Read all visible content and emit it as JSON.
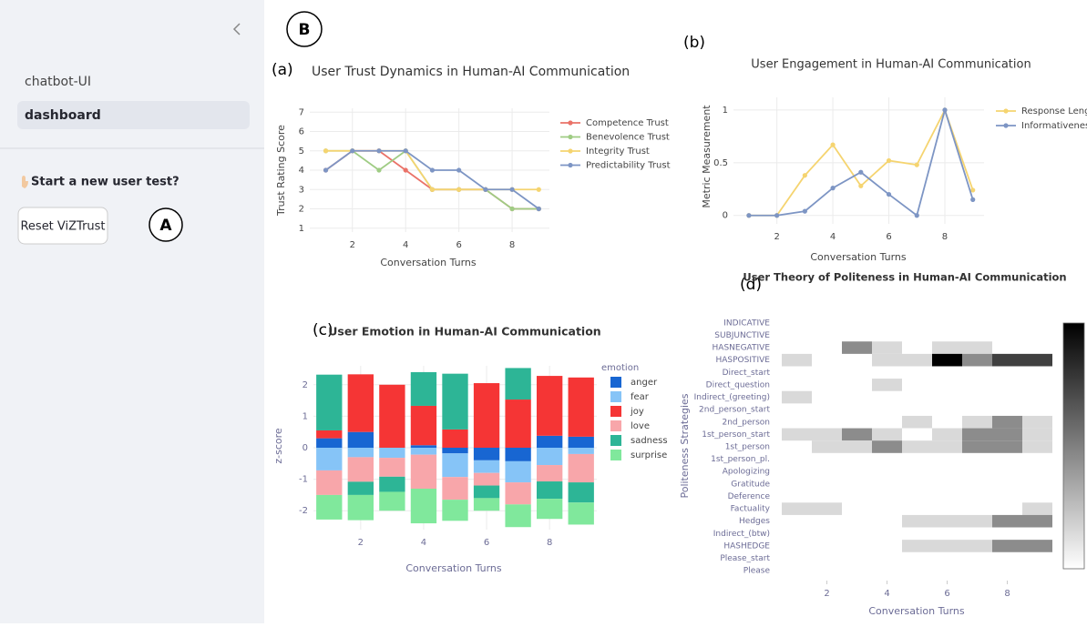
{
  "sidebar": {
    "nav": [
      "chatbot-UI",
      "dashboard"
    ],
    "prompt": "Start a new user test?",
    "button": "Reset ViZTrust"
  },
  "annotations": [
    "A",
    "B"
  ],
  "chart_data": [
    {
      "type": "line",
      "label": "(a)",
      "title": "User Trust Dynamics in Human-AI Communication",
      "x_label": "Conversation Turns",
      "y_label": "Trust Rating Score",
      "x": [
        1,
        2,
        3,
        4,
        5,
        6,
        7,
        8,
        9
      ],
      "xlim": [
        0.4,
        9.4
      ],
      "xticks": [
        2,
        4,
        6,
        8
      ],
      "ylim": [
        0.8,
        7.2
      ],
      "yticks": [
        1,
        2,
        3,
        4,
        5,
        6,
        7
      ],
      "grid": true,
      "series": [
        {
          "name": "Competence Trust",
          "color": "#ea7268",
          "values": [
            4,
            5,
            5,
            4,
            3,
            3,
            3,
            2,
            2
          ]
        },
        {
          "name": "Benevolence Trust",
          "color": "#9fcc84",
          "values": [
            5,
            5,
            4,
            5,
            3,
            3,
            3,
            2,
            2
          ]
        },
        {
          "name": "Integrity Trust",
          "color": "#f5d470",
          "values": [
            5,
            5,
            5,
            5,
            3,
            3,
            3,
            3,
            3
          ]
        },
        {
          "name": "Predictability Trust",
          "color": "#7d95c4",
          "values": [
            4,
            5,
            5,
            5,
            4,
            4,
            3,
            3,
            2
          ]
        }
      ]
    },
    {
      "type": "line",
      "label": "(b)",
      "title": "User Engagement in Human-AI Communication",
      "x_label": "Conversation Turns",
      "y_label": "Metric Measurement",
      "x": [
        1,
        2,
        3,
        4,
        5,
        6,
        7,
        8,
        9
      ],
      "xlim": [
        0.45,
        9.4
      ],
      "xticks": [
        2,
        4,
        6,
        8
      ],
      "ylim": [
        -0.08,
        1.12
      ],
      "yticks": [
        0,
        0.5,
        1
      ],
      "grid": true,
      "series": [
        {
          "name": "Response Length",
          "color": "#f5d470",
          "values": [
            0,
            0,
            0.38,
            0.67,
            0.28,
            0.52,
            0.48,
            1,
            0.24
          ]
        },
        {
          "name": "Informativeness",
          "color": "#7d95c4",
          "values": [
            0,
            0,
            0.04,
            0.26,
            0.41,
            0.2,
            0,
            1,
            0.15
          ]
        }
      ]
    },
    {
      "type": "bar",
      "label": "(c)",
      "title": "User Emotion in Human-AI Communication",
      "x_label": "Conversation Turns",
      "y_label": "z-score",
      "legend_title": "emotion",
      "x": [
        1,
        2,
        3,
        4,
        5,
        6,
        7,
        8,
        9
      ],
      "xlim": [
        0.5,
        9.5
      ],
      "xticks": [
        2,
        4,
        6,
        8
      ],
      "ylim": [
        -2.6,
        2.6
      ],
      "yticks": [
        -2,
        -1,
        0,
        1,
        2
      ],
      "grid": true,
      "series": [
        {
          "name": "anger",
          "color": "#1866d2",
          "values": [
            0.3,
            0.5,
            0,
            0.08,
            -0.18,
            -0.4,
            -0.43,
            0.38,
            0.35
          ]
        },
        {
          "name": "fear",
          "color": "#86c4f7",
          "values": [
            -0.72,
            -0.3,
            -0.32,
            -0.22,
            -0.75,
            -0.4,
            -0.67,
            -0.55,
            -0.2
          ]
        },
        {
          "name": "joy",
          "color": "#f53535",
          "values": [
            0.25,
            1.83,
            2.0,
            1.25,
            0.58,
            2.05,
            1.53,
            1.9,
            1.88
          ]
        },
        {
          "name": "love",
          "color": "#f8a6aa",
          "values": [
            -0.78,
            -0.78,
            -0.6,
            -1.08,
            -0.72,
            -0.4,
            -0.7,
            -0.52,
            -0.9
          ]
        },
        {
          "name": "sadness",
          "color": "#2db596",
          "values": [
            1.77,
            -0.42,
            -0.48,
            1.07,
            1.77,
            -0.4,
            1.0,
            -0.55,
            -0.64
          ]
        },
        {
          "name": "surprise",
          "color": "#80e89c",
          "values": [
            -0.78,
            -0.8,
            -0.6,
            -1.1,
            -0.67,
            -0.4,
            -0.72,
            -0.64,
            -0.7
          ]
        }
      ]
    },
    {
      "type": "heatmap",
      "label": "(d)",
      "title": "User Theory of Politeness in Human-AI Communication",
      "x_label": "Conversation Turns",
      "y_label": "Politeness Strategies",
      "x": [
        1,
        2,
        3,
        4,
        5,
        6,
        7,
        8,
        9
      ],
      "xlim": [
        0.5,
        9.5
      ],
      "xticks": [
        2,
        4,
        6,
        8
      ],
      "zlim": [
        0,
        1
      ],
      "y": [
        "INDICATIVE",
        "SUBJUNCTIVE",
        "HASNEGATIVE",
        "HASPOSITIVE",
        "Direct_start",
        "Direct_question",
        "Indirect_(greeting)",
        "2nd_person_start",
        "2nd_person",
        "1st_person_start",
        "1st_person",
        "1st_person_pl.",
        "Apologizing",
        "Gratitude",
        "Deference",
        "Factuality",
        "Hedges",
        "Indirect_(btw)",
        "HASHEDGE",
        "Please_start",
        "Please"
      ],
      "z": [
        [
          null,
          null,
          null,
          null,
          null,
          null,
          null,
          null,
          null
        ],
        [
          null,
          null,
          null,
          null,
          null,
          null,
          null,
          null,
          null
        ],
        [
          null,
          null,
          0.45,
          0.15,
          0,
          0.15,
          0.15,
          null,
          null
        ],
        [
          0.15,
          null,
          null,
          0.15,
          0.15,
          1,
          0.45,
          0.75,
          0.75
        ],
        [
          null,
          null,
          null,
          null,
          null,
          null,
          null,
          null,
          null
        ],
        [
          null,
          null,
          null,
          0.15,
          null,
          null,
          null,
          null,
          null
        ],
        [
          0.15,
          null,
          null,
          null,
          null,
          null,
          null,
          null,
          null
        ],
        [
          null,
          null,
          null,
          null,
          null,
          null,
          null,
          null,
          null
        ],
        [
          null,
          null,
          null,
          null,
          0.15,
          null,
          0.15,
          0.45,
          0.15
        ],
        [
          0.15,
          0.15,
          0.45,
          0.15,
          0,
          0.15,
          0.45,
          0.45,
          0.15
        ],
        [
          null,
          0.15,
          0.15,
          0.45,
          0.15,
          0.15,
          0.45,
          0.45,
          0.15
        ],
        [
          null,
          null,
          null,
          null,
          null,
          null,
          null,
          null,
          null
        ],
        [
          null,
          null,
          null,
          null,
          null,
          null,
          null,
          null,
          null
        ],
        [
          null,
          null,
          null,
          null,
          null,
          null,
          null,
          null,
          null
        ],
        [
          null,
          null,
          null,
          null,
          null,
          null,
          null,
          null,
          null
        ],
        [
          0.15,
          0.15,
          null,
          null,
          null,
          null,
          null,
          null,
          0.15
        ],
        [
          null,
          null,
          null,
          null,
          0.15,
          0.15,
          0.15,
          0.45,
          0.45
        ],
        [
          null,
          null,
          null,
          null,
          null,
          null,
          null,
          null,
          null
        ],
        [
          null,
          null,
          null,
          null,
          0.15,
          0.15,
          0.15,
          0.45,
          0.45
        ],
        [
          null,
          null,
          null,
          null,
          null,
          null,
          null,
          null,
          null
        ],
        [
          null,
          null,
          null,
          null,
          null,
          null,
          null,
          null,
          null
        ]
      ]
    }
  ]
}
